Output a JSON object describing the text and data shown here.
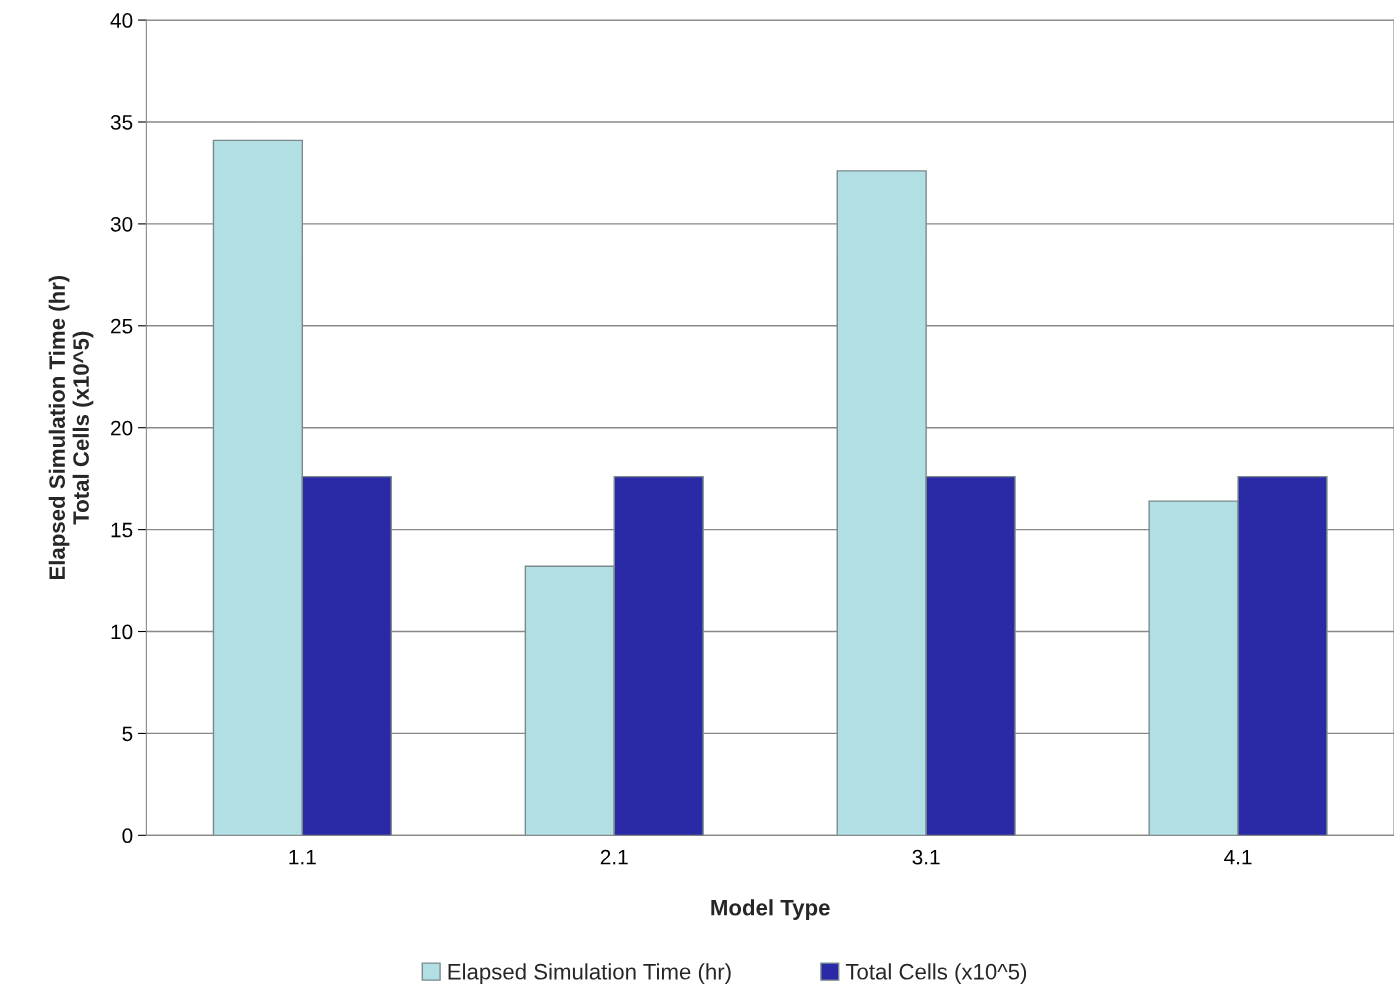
{
  "chart_data": {
    "type": "bar",
    "xlabel": "Model Type",
    "ylabel": "Elapsed Simulation Time (hr)\nTotal Cells (x10^5)",
    "categories": [
      "1.1",
      "2.1",
      "3.1",
      "4.1"
    ],
    "series": [
      {
        "name": "Elapsed Simulation Time (hr)",
        "color": "#b2dfe3",
        "values": [
          34.1,
          13.2,
          32.6,
          16.4
        ]
      },
      {
        "name": "Total Cells (x10^5)",
        "color": "#2a2aa6",
        "values": [
          17.6,
          17.6,
          17.6,
          17.6
        ]
      }
    ],
    "ylim": [
      0,
      40
    ],
    "yticks": [
      0,
      5,
      10,
      15,
      20,
      25,
      30,
      35,
      40
    ],
    "grid": "y",
    "legend": "bottom"
  }
}
